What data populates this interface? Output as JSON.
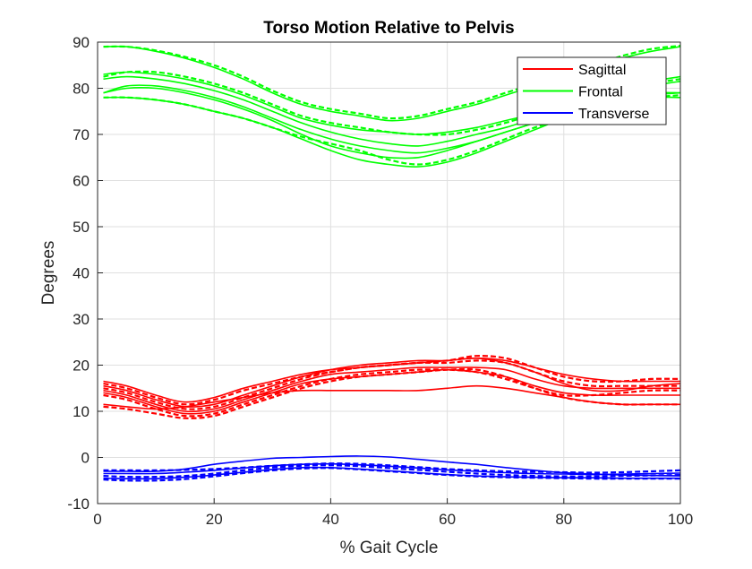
{
  "chart_data": {
    "type": "line",
    "title": "Torso Motion Relative to Pelvis",
    "xlabel": "% Gait Cycle",
    "ylabel": "Degrees",
    "xlim": [
      0,
      100
    ],
    "ylim": [
      -10,
      90
    ],
    "xticks": [
      "0",
      "20",
      "40",
      "60",
      "80",
      "100"
    ],
    "yticks": [
      "-10",
      "0",
      "10",
      "20",
      "30",
      "40",
      "50",
      "60",
      "70",
      "80",
      "90"
    ],
    "grid": true,
    "legend_position": "top-right",
    "legend": [
      {
        "name": "Sagittal",
        "color": "#ff0000"
      },
      {
        "name": "Frontal",
        "color": "#00ff00"
      },
      {
        "name": "Transverse",
        "color": "#0000ff"
      }
    ],
    "x": [
      1,
      5,
      10,
      15,
      20,
      25,
      30,
      35,
      40,
      45,
      50,
      55,
      60,
      65,
      70,
      75,
      80,
      85,
      90,
      95,
      100
    ],
    "series": [
      {
        "group": "Frontal",
        "color": "#00ff00",
        "style": "solid",
        "values": [
          89.0,
          89.0,
          88.0,
          86.5,
          84.5,
          82.0,
          79.0,
          76.5,
          75.0,
          74.0,
          73.0,
          73.5,
          75.0,
          76.5,
          78.5,
          80.5,
          82.5,
          84.5,
          86.5,
          88.0,
          89.0
        ]
      },
      {
        "group": "Frontal",
        "color": "#00ff00",
        "style": "dashed",
        "values": [
          89.0,
          89.0,
          88.2,
          86.8,
          85.0,
          82.5,
          79.5,
          77.0,
          75.5,
          74.5,
          73.5,
          74.0,
          75.5,
          77.0,
          79.0,
          81.0,
          83.0,
          85.0,
          87.0,
          88.5,
          89.2
        ]
      },
      {
        "group": "Frontal",
        "color": "#00ff00",
        "style": "solid",
        "values": [
          83.0,
          83.5,
          83.0,
          82.0,
          80.5,
          78.5,
          76.0,
          73.5,
          72.0,
          71.0,
          70.5,
          70.0,
          70.5,
          71.5,
          73.0,
          74.5,
          76.5,
          78.5,
          80.0,
          81.5,
          82.5
        ]
      },
      {
        "group": "Frontal",
        "color": "#00ff00",
        "style": "dashed",
        "values": [
          82.5,
          83.5,
          83.5,
          82.5,
          81.0,
          79.0,
          76.5,
          74.0,
          72.5,
          71.5,
          70.5,
          70.0,
          70.0,
          71.0,
          72.5,
          74.5,
          76.5,
          78.0,
          79.5,
          81.0,
          82.0
        ]
      },
      {
        "group": "Frontal",
        "color": "#00ff00",
        "style": "solid",
        "values": [
          82.0,
          82.5,
          82.0,
          81.0,
          79.5,
          77.5,
          75.0,
          72.5,
          70.5,
          69.0,
          68.0,
          67.5,
          68.5,
          70.0,
          71.5,
          73.5,
          75.5,
          77.5,
          79.0,
          80.5,
          81.5
        ]
      },
      {
        "group": "Frontal",
        "color": "#00ff00",
        "style": "solid",
        "values": [
          79.0,
          80.5,
          80.5,
          79.5,
          78.0,
          76.0,
          73.5,
          71.0,
          69.0,
          67.5,
          66.5,
          66.0,
          67.0,
          68.5,
          70.5,
          72.5,
          74.5,
          76.5,
          78.0,
          79.0,
          79.0
        ]
      },
      {
        "group": "Frontal",
        "color": "#00ff00",
        "style": "solid",
        "values": [
          79.0,
          80.0,
          80.0,
          79.0,
          77.5,
          75.5,
          73.0,
          70.0,
          67.5,
          66.0,
          65.0,
          65.0,
          66.5,
          68.5,
          70.5,
          72.5,
          74.5,
          76.0,
          77.5,
          78.5,
          79.0
        ]
      },
      {
        "group": "Frontal",
        "color": "#00ff00",
        "style": "dashed",
        "values": [
          78.0,
          78.0,
          77.5,
          76.5,
          75.0,
          73.5,
          71.5,
          69.5,
          68.0,
          66.5,
          64.5,
          63.5,
          64.5,
          66.5,
          69.0,
          71.5,
          73.5,
          75.5,
          77.0,
          78.0,
          78.5
        ]
      },
      {
        "group": "Frontal",
        "color": "#00ff00",
        "style": "solid",
        "values": [
          78.0,
          78.0,
          77.5,
          76.5,
          75.0,
          73.5,
          71.5,
          69.0,
          66.5,
          64.5,
          63.5,
          63.0,
          64.0,
          66.0,
          68.5,
          71.0,
          73.5,
          75.5,
          77.0,
          78.0,
          78.0
        ]
      },
      {
        "group": "Sagittal",
        "color": "#ff0000",
        "style": "solid",
        "values": [
          16.5,
          15.5,
          13.5,
          12.0,
          13.0,
          15.0,
          16.5,
          18.0,
          19.0,
          19.5,
          20.0,
          20.5,
          21.0,
          21.5,
          21.0,
          19.5,
          18.0,
          17.0,
          16.5,
          16.5,
          16.5
        ]
      },
      {
        "group": "Sagittal",
        "color": "#ff0000",
        "style": "dashed",
        "values": [
          16.0,
          15.0,
          13.0,
          11.5,
          12.5,
          14.5,
          16.0,
          17.5,
          18.5,
          19.5,
          20.0,
          20.5,
          21.0,
          22.0,
          21.5,
          19.5,
          17.5,
          16.5,
          16.5,
          17.0,
          17.0
        ]
      },
      {
        "group": "Sagittal",
        "color": "#ff0000",
        "style": "solid",
        "values": [
          15.5,
          14.5,
          12.5,
          11.0,
          11.5,
          13.5,
          15.5,
          17.5,
          19.0,
          20.0,
          20.5,
          21.0,
          21.0,
          21.5,
          20.5,
          18.5,
          16.0,
          14.5,
          14.5,
          15.5,
          16.0
        ]
      },
      {
        "group": "Sagittal",
        "color": "#ff0000",
        "style": "dashed",
        "values": [
          15.0,
          14.0,
          12.0,
          10.5,
          11.0,
          13.0,
          15.0,
          17.0,
          18.5,
          19.5,
          20.0,
          20.5,
          20.5,
          21.0,
          20.5,
          18.5,
          16.5,
          15.5,
          15.5,
          15.5,
          15.5
        ]
      },
      {
        "group": "Sagittal",
        "color": "#ff0000",
        "style": "solid",
        "values": [
          14.5,
          13.5,
          11.5,
          10.0,
          10.5,
          12.5,
          14.5,
          16.5,
          18.0,
          18.5,
          19.0,
          19.5,
          19.5,
          19.5,
          19.0,
          17.0,
          15.5,
          15.0,
          15.0,
          15.0,
          15.0
        ]
      },
      {
        "group": "Sagittal",
        "color": "#ff0000",
        "style": "solid",
        "values": [
          14.0,
          13.0,
          11.0,
          9.5,
          10.0,
          12.0,
          14.0,
          16.0,
          17.0,
          17.5,
          18.0,
          18.5,
          19.0,
          18.5,
          17.5,
          15.5,
          14.0,
          13.5,
          13.5,
          13.5,
          13.5
        ]
      },
      {
        "group": "Sagittal",
        "color": "#ff0000",
        "style": "dashed",
        "values": [
          13.5,
          12.5,
          10.5,
          9.0,
          9.5,
          11.5,
          13.5,
          15.5,
          17.0,
          18.0,
          18.5,
          19.0,
          19.0,
          18.5,
          17.0,
          15.0,
          13.5,
          13.5,
          14.0,
          14.5,
          14.5
        ]
      },
      {
        "group": "Sagittal",
        "color": "#ff0000",
        "style": "solid",
        "values": [
          11.5,
          11.0,
          10.5,
          11.0,
          12.0,
          13.0,
          14.0,
          14.5,
          14.5,
          14.5,
          14.5,
          14.5,
          15.0,
          15.5,
          15.0,
          14.0,
          13.0,
          12.0,
          11.5,
          11.5,
          11.5
        ]
      },
      {
        "group": "Sagittal",
        "color": "#ff0000",
        "style": "dashed",
        "values": [
          11.0,
          10.5,
          9.5,
          8.5,
          9.0,
          11.0,
          13.0,
          15.0,
          16.5,
          17.5,
          18.0,
          18.5,
          19.0,
          19.0,
          17.5,
          15.0,
          13.0,
          12.0,
          11.5,
          11.5,
          11.5
        ]
      },
      {
        "group": "Transverse",
        "color": "#0000ff",
        "style": "solid",
        "values": [
          -3.0,
          -3.0,
          -3.0,
          -2.5,
          -1.5,
          -0.8,
          -0.2,
          0.0,
          0.2,
          0.3,
          0.1,
          -0.4,
          -1.0,
          -1.5,
          -2.2,
          -2.8,
          -3.3,
          -3.6,
          -3.8,
          -3.9,
          -4.0
        ]
      },
      {
        "group": "Transverse",
        "color": "#0000ff",
        "style": "dashed",
        "values": [
          -2.8,
          -2.8,
          -2.8,
          -2.7,
          -2.5,
          -2.2,
          -1.8,
          -1.5,
          -1.3,
          -1.4,
          -1.7,
          -2.1,
          -2.5,
          -2.8,
          -3.0,
          -3.1,
          -3.2,
          -3.3,
          -3.2,
          -3.0,
          -2.8
        ]
      },
      {
        "group": "Transverse",
        "color": "#0000ff",
        "style": "solid",
        "values": [
          -3.5,
          -3.5,
          -3.5,
          -3.2,
          -2.8,
          -2.3,
          -1.8,
          -1.5,
          -1.4,
          -1.6,
          -1.9,
          -2.3,
          -2.7,
          -3.0,
          -3.3,
          -3.5,
          -3.6,
          -3.7,
          -3.6,
          -3.5,
          -3.4
        ]
      },
      {
        "group": "Transverse",
        "color": "#0000ff",
        "style": "dashed",
        "values": [
          -4.0,
          -4.2,
          -4.2,
          -4.0,
          -3.5,
          -2.8,
          -2.2,
          -1.8,
          -1.7,
          -1.9,
          -2.3,
          -2.7,
          -3.1,
          -3.5,
          -3.8,
          -4.0,
          -4.1,
          -4.1,
          -4.0,
          -3.9,
          -3.8
        ]
      },
      {
        "group": "Transverse",
        "color": "#0000ff",
        "style": "solid",
        "values": [
          -4.5,
          -4.6,
          -4.6,
          -4.3,
          -3.8,
          -3.2,
          -2.6,
          -2.2,
          -2.2,
          -2.5,
          -2.9,
          -3.3,
          -3.7,
          -4.0,
          -4.2,
          -4.3,
          -4.4,
          -4.4,
          -4.5,
          -4.5,
          -4.5
        ]
      },
      {
        "group": "Transverse",
        "color": "#0000ff",
        "style": "dashed",
        "values": [
          -4.8,
          -5.0,
          -5.0,
          -4.7,
          -4.1,
          -3.4,
          -2.8,
          -2.4,
          -2.3,
          -2.6,
          -3.0,
          -3.4,
          -3.8,
          -4.1,
          -4.3,
          -4.4,
          -4.5,
          -4.6,
          -4.6,
          -4.6,
          -4.6
        ]
      }
    ]
  }
}
